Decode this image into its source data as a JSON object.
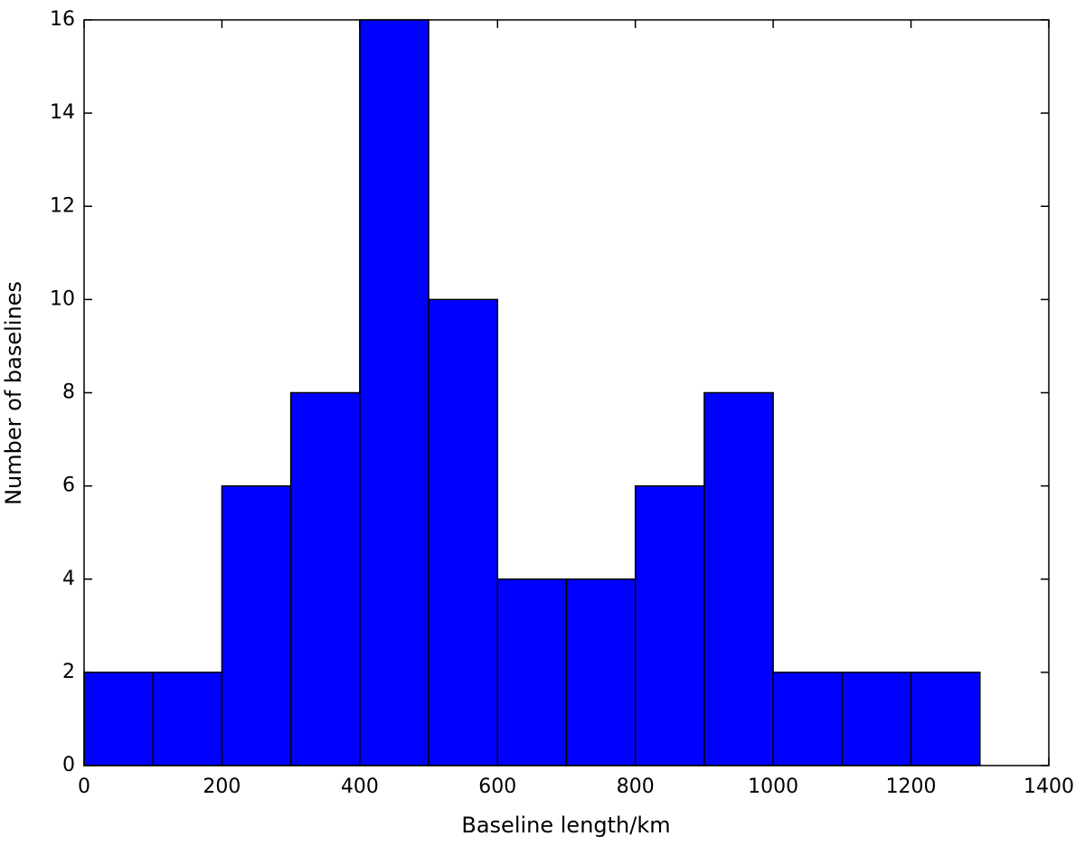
{
  "chart_data": {
    "type": "histogram",
    "xlabel": "Baseline length/km",
    "ylabel": "Number of baselines",
    "bins": [
      0,
      100,
      200,
      300,
      400,
      500,
      600,
      700,
      800,
      900,
      1000,
      1100,
      1200,
      1300
    ],
    "counts": [
      2,
      2,
      6,
      8,
      16,
      10,
      4,
      4,
      6,
      8,
      2,
      2,
      2
    ],
    "color": "#0000ff",
    "xlim": [
      0,
      1400
    ],
    "ylim": [
      0,
      16
    ],
    "xticks": [
      0,
      200,
      400,
      600,
      800,
      1000,
      1200,
      1400
    ],
    "yticks": [
      0,
      2,
      4,
      6,
      8,
      10,
      12,
      14,
      16
    ]
  }
}
